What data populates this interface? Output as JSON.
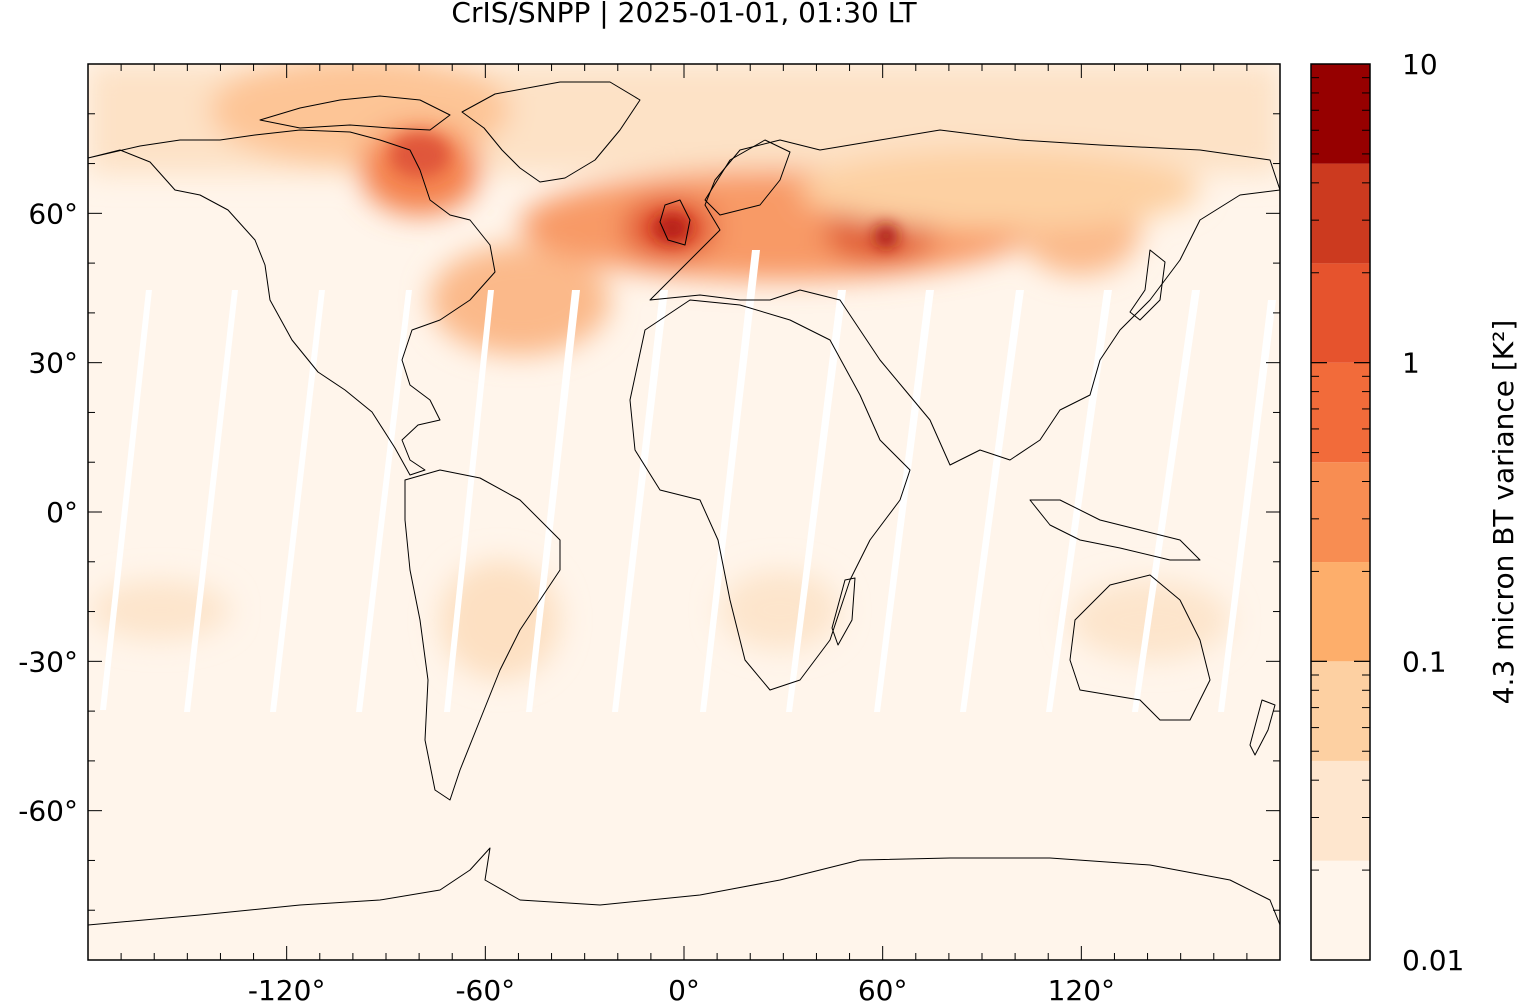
{
  "title": "CrIS/SNPP | 2025-01-01, 01:30 LT",
  "map": {
    "projection": "equirectangular",
    "lon_range": [
      -180,
      180
    ],
    "lat_range": [
      -90,
      90
    ],
    "grid": false,
    "colors": {
      "background": "#fff5eb",
      "coastline": "#000000",
      "swath_gap": "#ffffff"
    }
  },
  "axes": {
    "x_ticks": [
      "-120°",
      "-60°",
      "0°",
      "60°",
      "120°"
    ],
    "x_tick_values": [
      -120,
      -60,
      0,
      60,
      120
    ],
    "y_ticks": [
      "60°",
      "30°",
      "0°",
      "-30°",
      "-60°"
    ],
    "y_tick_values": [
      60,
      30,
      0,
      -30,
      -60
    ]
  },
  "colorbar": {
    "label": "4.3 micron BT variance [K²]",
    "scale": "log",
    "range": [
      0.01,
      10
    ],
    "tick_labels": [
      "10",
      "1",
      "0.1",
      "0.01"
    ],
    "tick_values": [
      10,
      1,
      0.1,
      0.01
    ],
    "levels": [
      0.01,
      0.0215,
      0.0464,
      0.1,
      0.215,
      0.464,
      1,
      2.15,
      4.64,
      10
    ],
    "colors": [
      "#fff5eb",
      "#fee6ce",
      "#fdd0a2",
      "#fdae6b",
      "#f88d52",
      "#f26b3a",
      "#e6532d",
      "#cc3a1f",
      "#960000"
    ]
  },
  "chart_data": {
    "type": "heatmap",
    "title": "CrIS/SNPP | 2025-01-01, 01:30 LT",
    "colorbar_label": "4.3 micron BT variance [K²]",
    "regions": [
      {
        "lon": [
          -115,
          -55
        ],
        "lat": [
          70,
          85
        ],
        "value": 0.5
      },
      {
        "lon": [
          -80,
          -60
        ],
        "lat": [
          55,
          75
        ],
        "value": 1.5
      },
      {
        "lon": [
          -10,
          5
        ],
        "lat": [
          50,
          60
        ],
        "value": 3
      },
      {
        "lon": [
          0,
          70
        ],
        "lat": [
          45,
          65
        ],
        "value": 1.0
      },
      {
        "lon": [
          55,
          65
        ],
        "lat": [
          50,
          60
        ],
        "value": 4
      },
      {
        "lon": [
          -60,
          -30
        ],
        "lat": [
          30,
          50
        ],
        "value": 0.4
      },
      {
        "lon": [
          100,
          130
        ],
        "lat": [
          45,
          60
        ],
        "value": 0.4
      },
      {
        "lon": [
          -180,
          180
        ],
        "lat": [
          65,
          90
        ],
        "value": 0.2
      },
      {
        "lon": [
          -60,
          -30
        ],
        "lat": [
          -40,
          -15
        ],
        "value": 0.08
      },
      {
        "lon": [
          15,
          45
        ],
        "lat": [
          -40,
          -20
        ],
        "value": 0.06
      },
      {
        "lon": [
          -180,
          180
        ],
        "lat": [
          -90,
          30
        ],
        "value": 0.01
      }
    ]
  }
}
